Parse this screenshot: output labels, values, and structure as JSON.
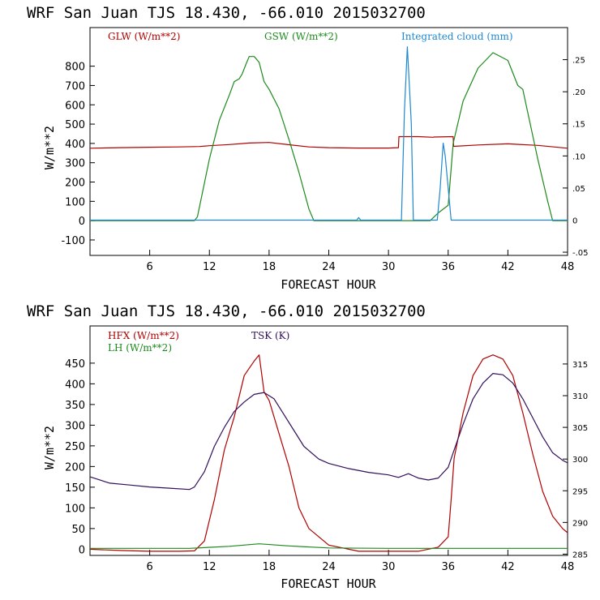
{
  "colors": {
    "red": "#b00000",
    "green": "#1c8a1c",
    "blue": "#1e88d0",
    "purple": "#30105a",
    "axis": "#000000"
  },
  "chart_data": [
    {
      "type": "line",
      "title": "WRF   San Juan TJS  18.430, -66.010  2015032700",
      "xlabel": "FORECAST HOUR",
      "ylabel": "W/m**2",
      "xlim": [
        0,
        48
      ],
      "ylim": [
        -180,
        1000
      ],
      "y2lim": [
        -0.055,
        0.3
      ],
      "xticks": [
        "6",
        "12",
        "18",
        "24",
        "30",
        "36",
        "42",
        "48"
      ],
      "yticks": [
        "-100",
        "0",
        "100",
        "200",
        "300",
        "400",
        "500",
        "600",
        "700",
        "800"
      ],
      "y2ticks": [
        "-.05",
        "0",
        ".05",
        ".10",
        ".15",
        ".20",
        ".25"
      ],
      "series": [
        {
          "name": "GLW (W/m**2)",
          "color": "red",
          "axis": "left",
          "x": [
            0,
            3,
            6,
            9,
            11,
            12,
            14,
            16,
            18,
            20,
            22,
            24,
            27,
            30,
            31,
            31.05,
            33,
            34.5,
            34.55,
            36.5,
            36.55,
            39,
            42,
            45,
            48
          ],
          "y": [
            375,
            378,
            380,
            382,
            384,
            388,
            394,
            402,
            405,
            393,
            382,
            378,
            376,
            376,
            378,
            435,
            435,
            432,
            433,
            435,
            385,
            392,
            398,
            390,
            375
          ]
        },
        {
          "name": "GSW (W/m**2)",
          "color": "green",
          "axis": "left",
          "x": [
            0,
            10.5,
            10.8,
            12,
            13,
            14,
            14.5,
            15,
            15.3,
            15.6,
            16,
            16.5,
            17,
            17.5,
            18,
            19,
            20,
            21,
            22,
            22.5,
            22.6,
            34.2,
            35,
            36,
            36.5,
            37.5,
            39,
            40.5,
            42,
            43,
            43.5,
            44,
            45,
            46,
            46.5,
            48
          ],
          "y": [
            0,
            0,
            20,
            320,
            520,
            650,
            720,
            735,
            760,
            800,
            850,
            850,
            820,
            720,
            680,
            580,
            420,
            250,
            60,
            0,
            0,
            0,
            40,
            80,
            400,
            620,
            790,
            870,
            830,
            700,
            680,
            560,
            320,
            100,
            0,
            0
          ]
        },
        {
          "name": "Integrated cloud (mm)",
          "color": "blue",
          "axis": "right",
          "x": [
            0,
            26.8,
            27,
            27.2,
            31.3,
            31.6,
            31.9,
            32.3,
            32.5,
            34.9,
            35.2,
            35.5,
            35.7,
            36.3,
            48
          ],
          "y": [
            0,
            0,
            0.004,
            0,
            0,
            0.17,
            0.27,
            0.15,
            0,
            0,
            0.05,
            0.12,
            0.1,
            0,
            0
          ]
        }
      ]
    },
    {
      "type": "line",
      "title": "WRF   San Juan TJS  18.430, -66.010  2015032700",
      "xlabel": "FORECAST HOUR",
      "ylabel": "W/m**2",
      "xlim": [
        0,
        48
      ],
      "ylim": [
        -15,
        540
      ],
      "y2lim": [
        284.8,
        321.0
      ],
      "xticks": [
        "6",
        "12",
        "18",
        "24",
        "30",
        "36",
        "42",
        "48"
      ],
      "yticks": [
        "0",
        "50",
        "100",
        "150",
        "200",
        "250",
        "300",
        "350",
        "400",
        "450"
      ],
      "y2ticks": [
        "285",
        "290",
        "295",
        "300",
        "305",
        "310",
        "315"
      ],
      "series": [
        {
          "name": "HFX (W/m**2)",
          "color": "red",
          "axis": "left",
          "x": [
            0,
            3,
            6,
            9,
            10.5,
            11.5,
            12.5,
            13.5,
            14.5,
            15.5,
            16.5,
            17,
            17.5,
            18,
            18.5,
            19,
            20,
            21,
            22,
            23,
            24,
            27,
            30,
            33,
            35,
            36,
            36.3,
            36.6,
            37.5,
            38.5,
            39.5,
            40.5,
            41.5,
            42.5,
            43.5,
            44.5,
            45.5,
            46.5,
            47.5,
            48
          ],
          "y": [
            0,
            -3,
            -5,
            -5,
            -4,
            20,
            120,
            240,
            320,
            420,
            455,
            470,
            380,
            360,
            320,
            280,
            200,
            100,
            50,
            30,
            10,
            -5,
            -5,
            -5,
            5,
            30,
            120,
            220,
            330,
            420,
            460,
            470,
            460,
            420,
            330,
            230,
            140,
            80,
            50,
            40
          ]
        },
        {
          "name": "LH (W/m**2)",
          "color": "green",
          "axis": "left",
          "x": [
            0,
            10,
            14,
            17,
            20,
            24,
            30,
            36,
            48
          ],
          "y": [
            2,
            2,
            7,
            13,
            8,
            3,
            2,
            2,
            2
          ]
        },
        {
          "name": "TSK (K)",
          "color": "purple",
          "axis": "right",
          "x": [
            0,
            2,
            4,
            6,
            8,
            10,
            10.5,
            11.5,
            12.5,
            13.5,
            14.5,
            15.5,
            16.5,
            17.5,
            18.5,
            19.5,
            20.5,
            21.5,
            23,
            24,
            26,
            28,
            30,
            31,
            32,
            33,
            34,
            35,
            36,
            36.5,
            37.5,
            38.5,
            39.5,
            40.5,
            41.5,
            42.5,
            43.5,
            44.5,
            45.5,
            46.5,
            47.5,
            48
          ],
          "y": [
            297.2,
            296.2,
            295.9,
            295.6,
            295.4,
            295.2,
            295.6,
            298.0,
            302.0,
            305.0,
            307.5,
            309.0,
            310.2,
            310.5,
            309.5,
            307.0,
            304.5,
            302.0,
            300.0,
            299.3,
            298.5,
            297.9,
            297.5,
            297.1,
            297.7,
            297.0,
            296.7,
            297.0,
            298.7,
            301.0,
            305.5,
            309.5,
            312.0,
            313.5,
            313.3,
            312.0,
            309.5,
            306.5,
            303.5,
            301.0,
            299.8,
            299.4
          ]
        }
      ]
    }
  ]
}
